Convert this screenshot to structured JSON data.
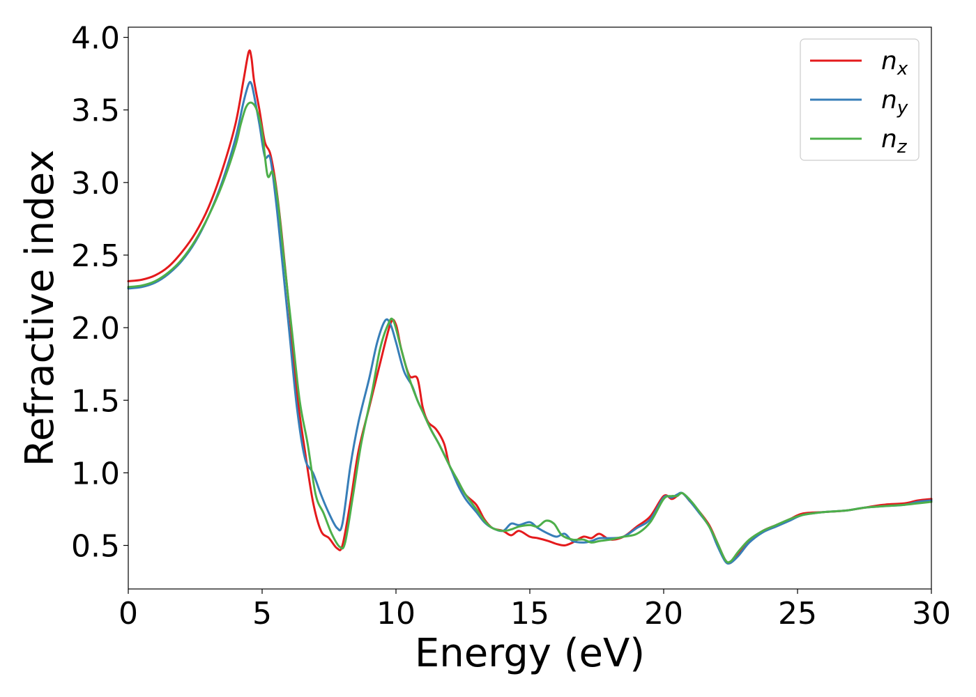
{
  "chart_data": {
    "type": "line",
    "xlabel": "Energy (eV)",
    "ylabel": "Refractive index",
    "xlim": [
      0,
      30
    ],
    "ylim": [
      0.2,
      4.07
    ],
    "xticks": [
      0,
      5,
      10,
      15,
      20,
      25,
      30
    ],
    "yticks": [
      0.5,
      1.0,
      1.5,
      2.0,
      2.5,
      3.0,
      3.5,
      4.0
    ],
    "xtick_labels": [
      "0",
      "5",
      "10",
      "15",
      "20",
      "25",
      "30"
    ],
    "ytick_labels": [
      "0.5",
      "1.0",
      "1.5",
      "2.0",
      "2.5",
      "3.0",
      "3.5",
      "4.0"
    ],
    "grid": false,
    "legend_position": "top-right",
    "series": [
      {
        "name": "n",
        "subscript": "x",
        "color": "#e41a1c",
        "x": [
          0,
          0.5,
          1,
          1.5,
          2,
          2.5,
          3,
          3.5,
          4,
          4.3,
          4.5,
          4.6,
          4.7,
          4.9,
          5.1,
          5.3,
          5.5,
          5.7,
          6.0,
          6.3,
          6.6,
          6.9,
          7.2,
          7.5,
          7.8,
          8.0,
          8.3,
          8.6,
          9.0,
          9.4,
          9.8,
          10.0,
          10.2,
          10.5,
          10.8,
          11.0,
          11.2,
          11.5,
          11.8,
          12.0,
          12.3,
          12.6,
          13.0,
          13.3,
          13.6,
          14.0,
          14.3,
          14.6,
          15.0,
          15.3,
          15.7,
          16.0,
          16.3,
          16.6,
          17.0,
          17.3,
          17.6,
          18.0,
          18.5,
          19.0,
          19.5,
          20.0,
          20.3,
          20.5,
          20.7,
          21.0,
          21.3,
          21.7,
          22.0,
          22.3,
          22.5,
          22.8,
          23.2,
          23.7,
          24.2,
          24.7,
          25.2,
          26.0,
          26.8,
          27.5,
          28.2,
          29.0,
          29.5,
          30.0
        ],
        "y": [
          2.32,
          2.33,
          2.36,
          2.42,
          2.52,
          2.65,
          2.83,
          3.08,
          3.4,
          3.7,
          3.9,
          3.86,
          3.7,
          3.5,
          3.28,
          3.2,
          3.0,
          2.7,
          2.15,
          1.55,
          1.15,
          0.8,
          0.6,
          0.55,
          0.48,
          0.5,
          0.8,
          1.15,
          1.45,
          1.75,
          2.03,
          2.02,
          1.85,
          1.67,
          1.65,
          1.45,
          1.35,
          1.3,
          1.2,
          1.05,
          0.95,
          0.85,
          0.78,
          0.68,
          0.62,
          0.6,
          0.57,
          0.6,
          0.56,
          0.55,
          0.53,
          0.51,
          0.5,
          0.52,
          0.56,
          0.55,
          0.58,
          0.54,
          0.56,
          0.63,
          0.7,
          0.84,
          0.82,
          0.84,
          0.86,
          0.8,
          0.74,
          0.64,
          0.52,
          0.4,
          0.38,
          0.45,
          0.53,
          0.6,
          0.64,
          0.68,
          0.72,
          0.73,
          0.74,
          0.76,
          0.78,
          0.79,
          0.81,
          0.82
        ]
      },
      {
        "name": "n",
        "subscript": "y",
        "color": "#377eb8",
        "x": [
          0,
          0.5,
          1,
          1.5,
          2,
          2.5,
          3,
          3.5,
          4,
          4.3,
          4.5,
          4.6,
          4.7,
          4.9,
          5.1,
          5.3,
          5.5,
          5.7,
          6.0,
          6.3,
          6.6,
          6.9,
          7.2,
          7.5,
          7.8,
          8.0,
          8.3,
          8.6,
          9.0,
          9.3,
          9.6,
          9.8,
          10.0,
          10.3,
          10.6,
          10.8,
          11.0,
          11.3,
          11.6,
          12.0,
          12.3,
          12.6,
          13.0,
          13.3,
          13.6,
          14.0,
          14.3,
          14.6,
          15.0,
          15.3,
          15.7,
          16.0,
          16.3,
          16.6,
          17.0,
          17.3,
          17.6,
          18.0,
          18.5,
          19.0,
          19.5,
          20.0,
          20.3,
          20.5,
          20.7,
          21.0,
          21.3,
          21.7,
          22.0,
          22.3,
          22.5,
          22.8,
          23.2,
          23.7,
          24.2,
          24.7,
          25.2,
          26.0,
          26.8,
          27.5,
          28.2,
          29.0,
          29.5,
          30.0
        ],
        "y": [
          2.27,
          2.28,
          2.31,
          2.37,
          2.46,
          2.59,
          2.77,
          3.0,
          3.3,
          3.55,
          3.68,
          3.68,
          3.6,
          3.4,
          3.18,
          3.17,
          2.9,
          2.55,
          2.0,
          1.45,
          1.1,
          1.0,
          0.85,
          0.72,
          0.62,
          0.65,
          1.05,
          1.35,
          1.65,
          1.9,
          2.05,
          2.02,
          1.9,
          1.7,
          1.6,
          1.5,
          1.42,
          1.3,
          1.2,
          1.05,
          0.92,
          0.82,
          0.73,
          0.66,
          0.62,
          0.6,
          0.65,
          0.64,
          0.66,
          0.62,
          0.58,
          0.56,
          0.58,
          0.53,
          0.52,
          0.53,
          0.55,
          0.55,
          0.56,
          0.62,
          0.68,
          0.83,
          0.83,
          0.85,
          0.86,
          0.8,
          0.73,
          0.63,
          0.5,
          0.39,
          0.38,
          0.43,
          0.52,
          0.59,
          0.63,
          0.67,
          0.71,
          0.73,
          0.74,
          0.76,
          0.77,
          0.78,
          0.8,
          0.81
        ]
      },
      {
        "name": "n",
        "subscript": "z",
        "color": "#4daf4a",
        "x": [
          0,
          0.5,
          1,
          1.5,
          2,
          2.5,
          3,
          3.5,
          4,
          4.2,
          4.4,
          4.6,
          4.8,
          5.0,
          5.2,
          5.4,
          5.6,
          5.8,
          6.1,
          6.4,
          6.7,
          7.0,
          7.3,
          7.6,
          7.9,
          8.1,
          8.4,
          8.7,
          9.1,
          9.4,
          9.7,
          9.9,
          10.2,
          10.5,
          10.8,
          11.0,
          11.3,
          11.6,
          12.0,
          12.3,
          12.6,
          13.0,
          13.3,
          13.6,
          14.0,
          14.3,
          14.6,
          15.0,
          15.3,
          15.6,
          15.9,
          16.2,
          16.6,
          17.0,
          17.3,
          17.6,
          18.0,
          18.5,
          19.0,
          19.5,
          20.0,
          20.3,
          20.5,
          20.7,
          21.0,
          21.3,
          21.7,
          22.0,
          22.3,
          22.5,
          22.8,
          23.2,
          23.7,
          24.2,
          24.7,
          25.2,
          26.0,
          26.8,
          27.5,
          28.2,
          29.0,
          29.5,
          30.0
        ],
        "y": [
          2.28,
          2.29,
          2.32,
          2.38,
          2.47,
          2.6,
          2.77,
          2.98,
          3.25,
          3.4,
          3.52,
          3.55,
          3.5,
          3.35,
          3.05,
          3.07,
          2.85,
          2.5,
          2.0,
          1.5,
          1.2,
          0.85,
          0.72,
          0.58,
          0.49,
          0.52,
          0.85,
          1.2,
          1.55,
          1.85,
          2.02,
          2.05,
          1.85,
          1.65,
          1.5,
          1.42,
          1.3,
          1.2,
          1.05,
          0.95,
          0.85,
          0.75,
          0.67,
          0.62,
          0.6,
          0.61,
          0.63,
          0.64,
          0.63,
          0.67,
          0.65,
          0.57,
          0.54,
          0.54,
          0.52,
          0.53,
          0.54,
          0.56,
          0.58,
          0.66,
          0.82,
          0.84,
          0.84,
          0.86,
          0.81,
          0.74,
          0.63,
          0.52,
          0.4,
          0.39,
          0.46,
          0.54,
          0.6,
          0.64,
          0.68,
          0.71,
          0.73,
          0.74,
          0.76,
          0.77,
          0.78,
          0.79,
          0.8
        ]
      }
    ]
  }
}
